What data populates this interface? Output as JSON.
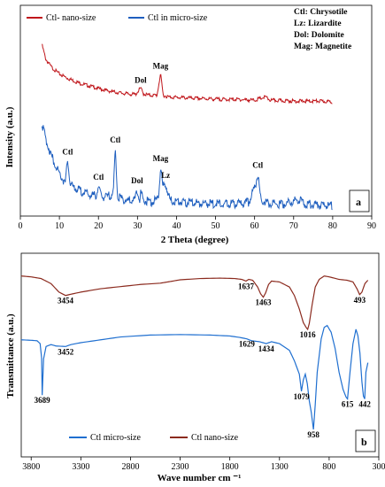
{
  "chart_data": [
    {
      "type": "line",
      "panel": "a",
      "xlabel": "2 Theta (degree)",
      "ylabel": "Intensity (a.u.)",
      "xlim": [
        0,
        90
      ],
      "xticks": [
        "0",
        "10",
        "20",
        "30",
        "40",
        "50",
        "60",
        "70",
        "80",
        "90"
      ],
      "grid": false,
      "legend_position": "top-left",
      "series": [
        {
          "name": "Ctl- nano-size",
          "color": "#c0161b",
          "points": [
            [
              5.5,
              100
            ],
            [
              6.5,
              82
            ],
            [
              8,
              72
            ],
            [
              10,
              64
            ],
            [
              12,
              59
            ],
            [
              15,
              53
            ],
            [
              18,
              49
            ],
            [
              21,
              45
            ],
            [
              24,
              42
            ],
            [
              27,
              40
            ],
            [
              29.5,
              39
            ],
            [
              30.8,
              47
            ],
            [
              31.5,
              40
            ],
            [
              33,
              38
            ],
            [
              35,
              38
            ],
            [
              35.9,
              64
            ],
            [
              36.6,
              38
            ],
            [
              38,
              36
            ],
            [
              42,
              35
            ],
            [
              47,
              34
            ],
            [
              52,
              33
            ],
            [
              56,
              33
            ],
            [
              60,
              32
            ],
            [
              62.8,
              36
            ],
            [
              64,
              32
            ],
            [
              70,
              31
            ],
            [
              76,
              31
            ],
            [
              80,
              30
            ]
          ]
        },
        {
          "name": "Ctl in micro-size",
          "color": "#1f5fbf",
          "points": [
            [
              5.5,
              52
            ],
            [
              6.5,
              42
            ],
            [
              8,
              32
            ],
            [
              10,
              22
            ],
            [
              11.5,
              16
            ],
            [
              12.1,
              30
            ],
            [
              12.8,
              15
            ],
            [
              15,
              12
            ],
            [
              18,
              9
            ],
            [
              19.5,
              9
            ],
            [
              20,
              15
            ],
            [
              20.7,
              8
            ],
            [
              22,
              8
            ],
            [
              23.8,
              10
            ],
            [
              24.3,
              37
            ],
            [
              24.9,
              8
            ],
            [
              27,
              6
            ],
            [
              29.3,
              6
            ],
            [
              29.9,
              13
            ],
            [
              30.5,
              6
            ],
            [
              30.9,
              11
            ],
            [
              31.5,
              6
            ],
            [
              34,
              5
            ],
            [
              35.4,
              8
            ],
            [
              35.9,
              26
            ],
            [
              36.5,
              14
            ],
            [
              37.2,
              16
            ],
            [
              38.3,
              6
            ],
            [
              42,
              5
            ],
            [
              50,
              4
            ],
            [
              56,
              4
            ],
            [
              58.5,
              5
            ],
            [
              60.2,
              15
            ],
            [
              60.8,
              22
            ],
            [
              61.6,
              6
            ],
            [
              64,
              4
            ],
            [
              68,
              4
            ],
            [
              71.4,
              7
            ],
            [
              73,
              4
            ],
            [
              78,
              3
            ],
            [
              80,
              3
            ]
          ]
        }
      ],
      "annotations": [
        {
          "text": "Dol",
          "x": 30.8,
          "series": 0
        },
        {
          "text": "Mag",
          "x": 35.9,
          "series": 0
        },
        {
          "text": "Ctl",
          "x": 12.1,
          "series": 1
        },
        {
          "text": "Ctl",
          "x": 20,
          "series": 1
        },
        {
          "text": "Ctl",
          "x": 24.3,
          "series": 1
        },
        {
          "text": "Dol",
          "x": 29.9,
          "series": 1
        },
        {
          "text": "Mag",
          "x": 35.9,
          "series": 1
        },
        {
          "text": "Lz",
          "x": 37.2,
          "series": 1
        },
        {
          "text": "Ctl",
          "x": 60.8,
          "series": 1
        }
      ],
      "abbreviations": [
        "Ctl: Chrysotile",
        "Lz: Lizardite",
        "Dol: Dolomite",
        "Mag: Magnetite"
      ],
      "panel_label": "a"
    },
    {
      "type": "line",
      "panel": "b",
      "xlabel": "Wave number cm ⁻¹",
      "ylabel": "Transmittance (a.u.)",
      "xlim": [
        3900,
        300
      ],
      "xticks": [
        "3800",
        "3300",
        "2800",
        "2300",
        "1800",
        "1300",
        "800",
        "300"
      ],
      "grid": false,
      "legend_position": "bottom-left",
      "series": [
        {
          "name": "Ctl micro-size",
          "color": "#1f6fd0",
          "points": [
            [
              3900,
              36
            ],
            [
              3800,
              36.5
            ],
            [
              3740,
              37
            ],
            [
              3710,
              40
            ],
            [
              3695,
              55
            ],
            [
              3689,
              94
            ],
            [
              3675,
              56
            ],
            [
              3650,
              43
            ],
            [
              3600,
              41
            ],
            [
              3550,
              42.5
            ],
            [
              3452,
              43
            ],
            [
              3400,
              41
            ],
            [
              3300,
              39
            ],
            [
              3100,
              36
            ],
            [
              2900,
              33
            ],
            [
              2600,
              31
            ],
            [
              2300,
              30.5
            ],
            [
              2000,
              31
            ],
            [
              1800,
              32
            ],
            [
              1700,
              33.5
            ],
            [
              1629,
              35
            ],
            [
              1580,
              37
            ],
            [
              1500,
              38
            ],
            [
              1434,
              40
            ],
            [
              1380,
              38
            ],
            [
              1300,
              40
            ],
            [
              1200,
              47
            ],
            [
              1150,
              58
            ],
            [
              1100,
              72
            ],
            [
              1079,
              90
            ],
            [
              1060,
              78
            ],
            [
              1040,
              72
            ],
            [
              1020,
              82
            ],
            [
              1000,
              100
            ],
            [
              980,
              112
            ],
            [
              958,
              130
            ],
            [
              940,
              104
            ],
            [
              920,
              70
            ],
            [
              880,
              35
            ],
            [
              850,
              23
            ],
            [
              820,
              21
            ],
            [
              780,
              28
            ],
            [
              740,
              45
            ],
            [
              700,
              70
            ],
            [
              660,
              88
            ],
            [
              630,
              96
            ],
            [
              615,
              98
            ],
            [
              590,
              70
            ],
            [
              560,
              40
            ],
            [
              530,
              25
            ],
            [
              510,
              32
            ],
            [
              490,
              50
            ],
            [
              470,
              80
            ],
            [
              455,
              95
            ],
            [
              442,
              98
            ],
            [
              430,
              70
            ],
            [
              410,
              60
            ]
          ]
        },
        {
          "name": "Ctl nano-size",
          "color": "#8b2a1e",
          "points": [
            [
              3900,
              7
            ],
            [
              3800,
              8
            ],
            [
              3700,
              10
            ],
            [
              3600,
              16
            ],
            [
              3520,
              26
            ],
            [
              3454,
              30
            ],
            [
              3400,
              28.5
            ],
            [
              3300,
              26
            ],
            [
              3100,
              22
            ],
            [
              2900,
              19.5
            ],
            [
              2700,
              17
            ],
            [
              2500,
              15.5
            ],
            [
              2400,
              13.5
            ],
            [
              2300,
              11.5
            ],
            [
              2100,
              10
            ],
            [
              1900,
              9.5
            ],
            [
              1750,
              10
            ],
            [
              1680,
              11
            ],
            [
              1637,
              13
            ],
            [
              1610,
              11
            ],
            [
              1570,
              12
            ],
            [
              1520,
              20
            ],
            [
              1490,
              28
            ],
            [
              1463,
              32
            ],
            [
              1440,
              27
            ],
            [
              1410,
              17
            ],
            [
              1380,
              13
            ],
            [
              1300,
              14
            ],
            [
              1200,
              20
            ],
            [
              1150,
              30
            ],
            [
              1100,
              46
            ],
            [
              1060,
              62
            ],
            [
              1030,
              68
            ],
            [
              1016,
              70
            ],
            [
              1000,
              63
            ],
            [
              970,
              40
            ],
            [
              940,
              20
            ],
            [
              900,
              11
            ],
            [
              850,
              7
            ],
            [
              800,
              8
            ],
            [
              700,
              11
            ],
            [
              620,
              12
            ],
            [
              560,
              14
            ],
            [
              520,
              22
            ],
            [
              493,
              29
            ],
            [
              470,
              26
            ],
            [
              440,
              16
            ],
            [
              410,
              12
            ]
          ]
        }
      ],
      "annotations": [
        {
          "text": "3454",
          "x": 3454,
          "series": 1
        },
        {
          "text": "1637",
          "x": 1637,
          "series": 1
        },
        {
          "text": "1463",
          "x": 1463,
          "series": 1
        },
        {
          "text": "1016",
          "x": 1016,
          "series": 1
        },
        {
          "text": "493",
          "x": 493,
          "series": 1
        },
        {
          "text": "3689",
          "x": 3689,
          "series": 0
        },
        {
          "text": "3452",
          "x": 3452,
          "series": 0
        },
        {
          "text": "1629",
          "x": 1629,
          "series": 0
        },
        {
          "text": "1434",
          "x": 1434,
          "series": 0
        },
        {
          "text": "1079",
          "x": 1079,
          "series": 0
        },
        {
          "text": "958",
          "x": 958,
          "series": 0
        },
        {
          "text": "615",
          "x": 615,
          "series": 0
        },
        {
          "text": "442",
          "x": 442,
          "series": 0
        }
      ],
      "panel_label": "b"
    }
  ]
}
